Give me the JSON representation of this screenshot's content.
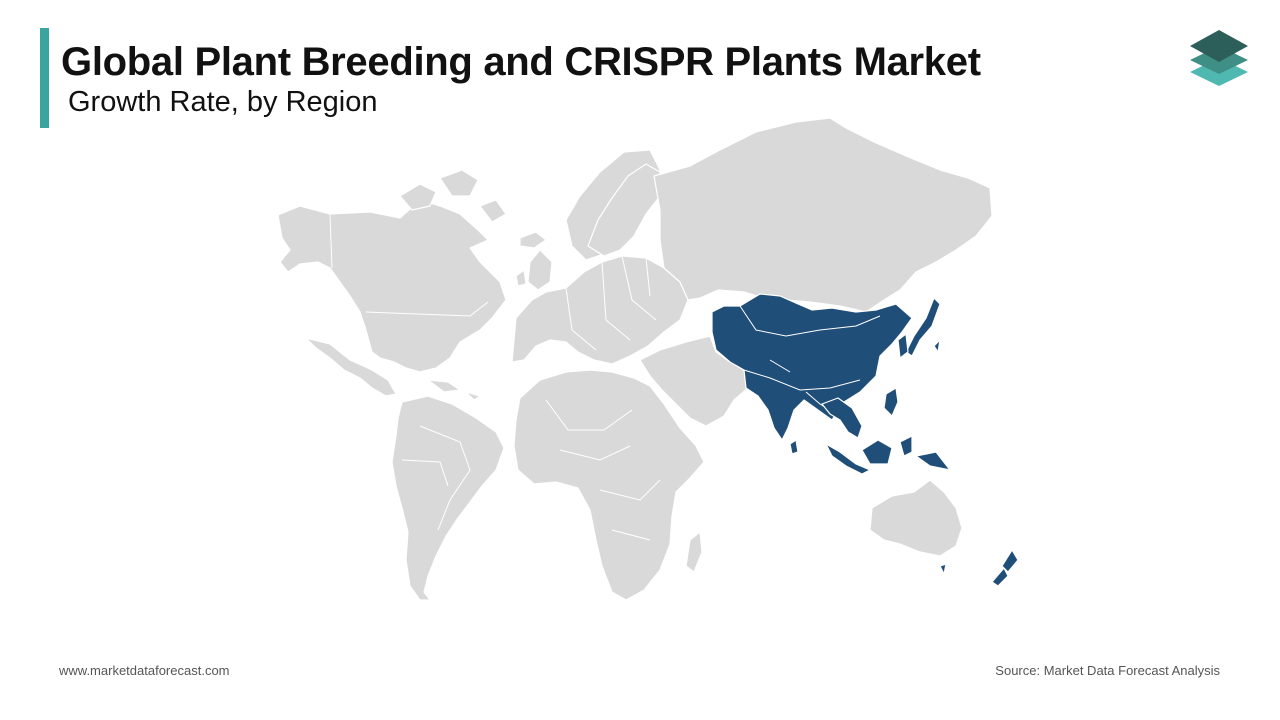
{
  "header": {
    "title": "Global Plant Breeding and CRISPR Plants Market",
    "subtitle": "Growth Rate, by Region"
  },
  "map": {
    "highlighted_region": "Asia-Pacific",
    "colors": {
      "highlight": "#1f4e79",
      "land": "#d9d9d9",
      "accent": "#3aa59f"
    }
  },
  "logo": {
    "icon": "stacked-layers-icon",
    "colors": [
      "#2d5f5a",
      "#3f8f86",
      "#4fb8b0"
    ]
  },
  "footer": {
    "website": "www.marketdataforecast.com",
    "source": "Source: Market Data Forecast Analysis"
  }
}
